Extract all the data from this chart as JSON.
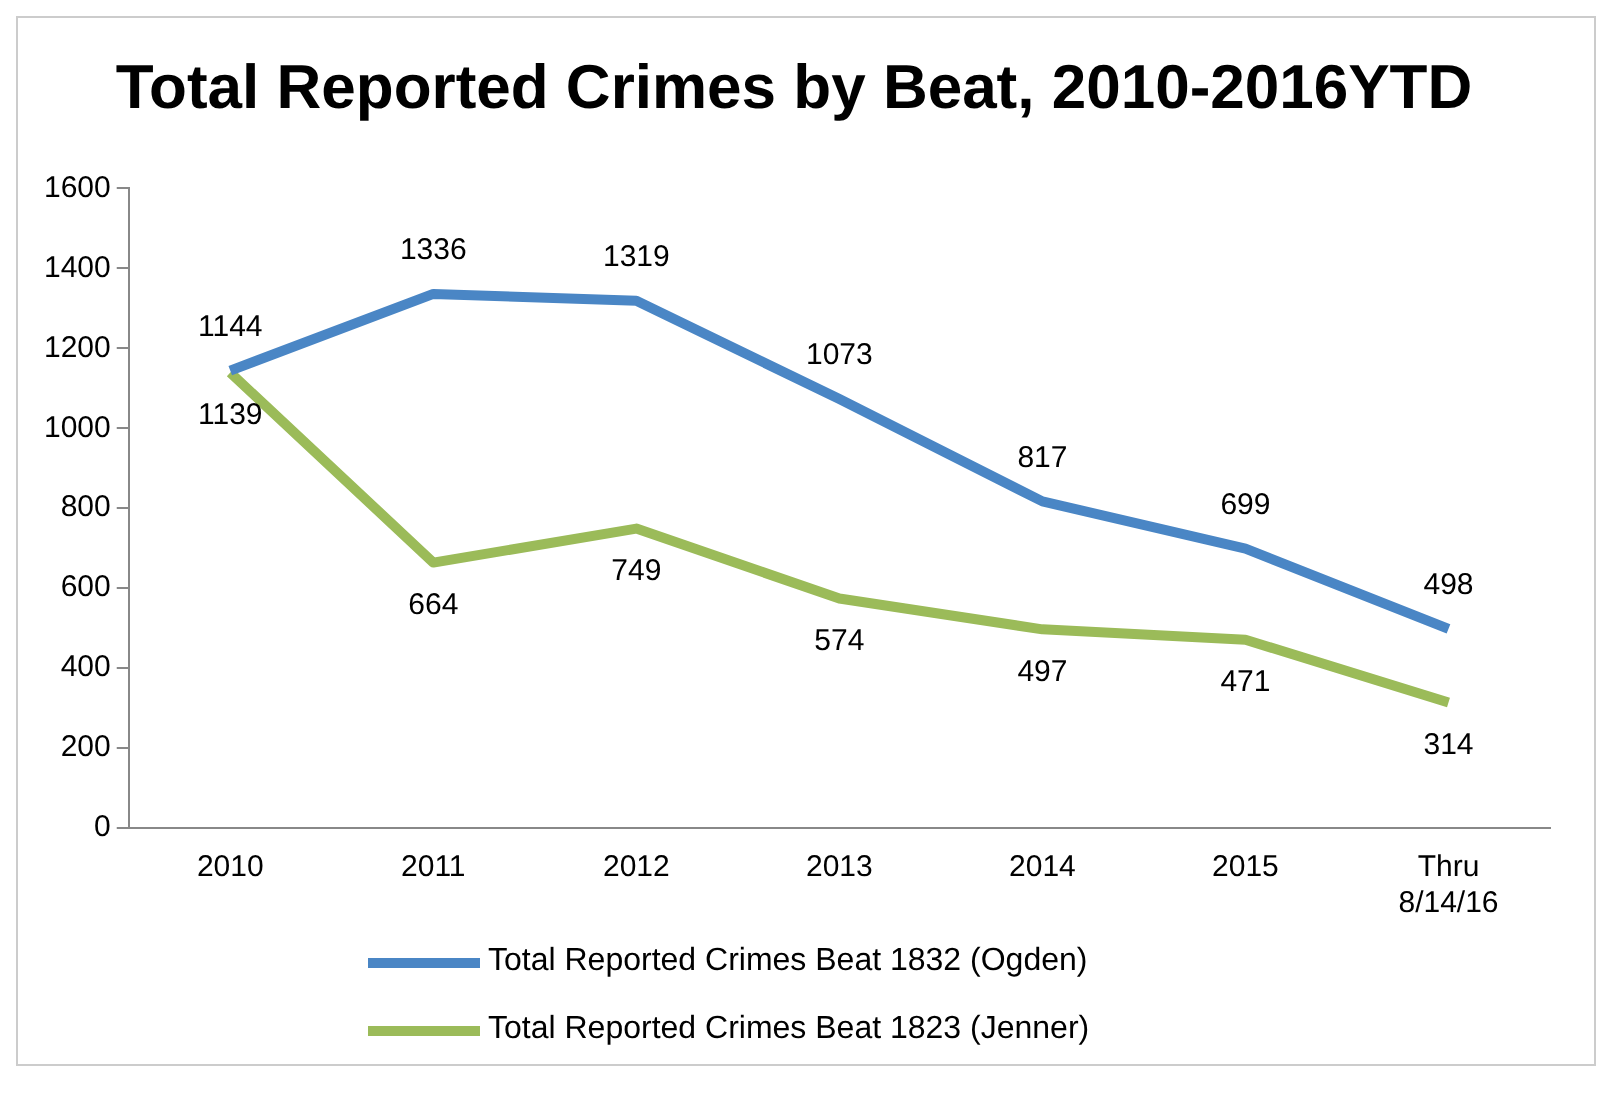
{
  "chart_data": {
    "type": "line",
    "title": "Total Reported Crimes by Beat, 2010-2016YTD",
    "categories": [
      "2010",
      "2011",
      "2012",
      "2013",
      "2014",
      "2015",
      "Thru 8/14/16"
    ],
    "series": [
      {
        "name": "Total Reported Crimes Beat 1832 (Ogden)",
        "color": "#4a86c5",
        "values": [
          1144,
          1336,
          1319,
          1073,
          817,
          699,
          498
        ]
      },
      {
        "name": "Total Reported Crimes Beat 1823 (Jenner)",
        "color": "#9bbb59",
        "values": [
          1139,
          664,
          749,
          574,
          497,
          471,
          314
        ]
      }
    ],
    "ylim": [
      0,
      1600
    ],
    "yticks": [
      0,
      200,
      400,
      600,
      800,
      1000,
      1200,
      1400,
      1600
    ],
    "data_labels": true,
    "legend": "bottom",
    "grid": false,
    "marker": "none",
    "line_style": "solid"
  }
}
